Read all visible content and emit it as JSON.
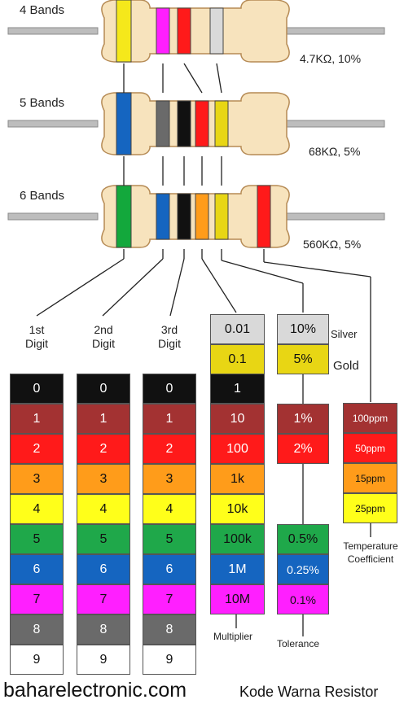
{
  "resistors": [
    {
      "label": "4 Bands",
      "value": "4.7KΩ, 10%",
      "bands": [
        "#f5e81b",
        "#ff1fff",
        "#ff1a1a",
        "#d9d9d9"
      ]
    },
    {
      "label": "5 Bands",
      "value": "68KΩ, 5%",
      "bands": [
        "#1565c0",
        "#6a6a6a",
        "#111111",
        "#ff1a1a",
        "#e8d614"
      ]
    },
    {
      "label": "6 Bands",
      "value": "560KΩ, 5%",
      "bands": [
        "#13a83c",
        "#1565c0",
        "#111111",
        "#ff9c1a",
        "#e8d614",
        "#ff1a1a"
      ]
    }
  ],
  "digit_columns": [
    {
      "title_line1": "1st",
      "title_line2": "Digit",
      "values": [
        "0",
        "1",
        "2",
        "3",
        "4",
        "5",
        "6",
        "7",
        "8",
        "9"
      ]
    },
    {
      "title_line1": "2nd",
      "title_line2": "Digit",
      "values": [
        "0",
        "1",
        "2",
        "3",
        "4",
        "5",
        "6",
        "7",
        "8",
        "9"
      ]
    },
    {
      "title_line1": "3rd",
      "title_line2": "Digit",
      "values": [
        "0",
        "1",
        "2",
        "3",
        "4",
        "5",
        "6",
        "7",
        "8",
        "9"
      ]
    }
  ],
  "digit_colors": [
    "#111111",
    "#a33232",
    "#ff1a1a",
    "#ff9c1a",
    "#ffff1a",
    "#1fa84a",
    "#1565c0",
    "#ff1fff",
    "#6a6a6a",
    "#ffffff"
  ],
  "multiplier": {
    "label": "Multiplier",
    "values": [
      "0.01",
      "0.1",
      "1",
      "10",
      "100",
      "1k",
      "10k",
      "100k",
      "1M",
      "10M"
    ],
    "colors": [
      "#d9d9d9",
      "#e8d614",
      "#111111",
      "#a33232",
      "#ff1a1a",
      "#ff9c1a",
      "#ffff1a",
      "#1fa84a",
      "#1565c0",
      "#ff1fff"
    ]
  },
  "tolerance": {
    "label": "Tolerance",
    "items": [
      {
        "value": "10%",
        "color": "#d9d9d9",
        "tag": "Silver"
      },
      {
        "value": "5%",
        "color": "#e8d614",
        "tag": "Gold"
      },
      {
        "value": "1%",
        "color": "#a33232",
        "tag": ""
      },
      {
        "value": "2%",
        "color": "#ff1a1a",
        "tag": ""
      },
      {
        "value": "0.5%",
        "color": "#1fa84a",
        "tag": ""
      },
      {
        "value": "0.25%",
        "color": "#1565c0",
        "tag": ""
      },
      {
        "value": "0.1%",
        "color": "#ff1fff",
        "tag": ""
      }
    ]
  },
  "temperature": {
    "label_line1": "Temperature",
    "label_line2": "Coefficient",
    "items": [
      {
        "value": "100ppm",
        "color": "#a33232"
      },
      {
        "value": "50ppm",
        "color": "#ff1a1a"
      },
      {
        "value": "15ppm",
        "color": "#ff9c1a"
      },
      {
        "value": "25ppm",
        "color": "#ffff1a"
      }
    ]
  },
  "footer": {
    "site": "baharelectronic.com",
    "title": "Kode Warna Resistor"
  }
}
